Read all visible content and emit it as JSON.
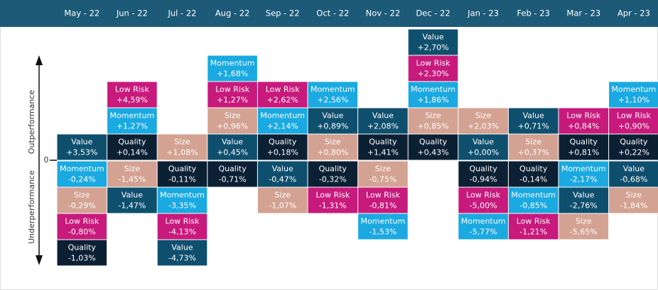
{
  "chart_data": {
    "type": "ranked-grid",
    "axis_labels": {
      "upper": "Outperformance",
      "lower": "Underperformance",
      "zero": "0"
    },
    "colors": {
      "Value": "#0f4f6e",
      "Quality": "#0c2034",
      "Momentum": "#1aa9e1",
      "Low Risk": "#c8197c",
      "Size": "#d3a292"
    },
    "columns": [
      {
        "month": "May - 22",
        "cells": [
          {
            "factor": "Value",
            "value": 3.53,
            "label": "+3,53%"
          },
          {
            "factor": "Momentum",
            "value": -0.24,
            "label": "-0,24%"
          },
          {
            "factor": "Size",
            "value": -0.29,
            "label": "-0,29%"
          },
          {
            "factor": "Low Risk",
            "value": -0.8,
            "label": "-0,80%"
          },
          {
            "factor": "Quality",
            "value": -1.03,
            "label": "-1,03%"
          }
        ]
      },
      {
        "month": "Jun - 22",
        "cells": [
          {
            "factor": "Low Risk",
            "value": 4.59,
            "label": "+4,59%"
          },
          {
            "factor": "Momentum",
            "value": 1.27,
            "label": "+1,27%"
          },
          {
            "factor": "Quality",
            "value": 0.14,
            "label": "+0,14%"
          },
          {
            "factor": "Size",
            "value": -1.45,
            "label": "-1,45%"
          },
          {
            "factor": "Value",
            "value": -1.47,
            "label": "-1,47%"
          }
        ]
      },
      {
        "month": "Jul - 22",
        "cells": [
          {
            "factor": "Size",
            "value": 1.08,
            "label": "+1,08%"
          },
          {
            "factor": "Quality",
            "value": -0.11,
            "label": "-0,11%"
          },
          {
            "factor": "Momentum",
            "value": -3.35,
            "label": "-3,35%"
          },
          {
            "factor": "Low Risk",
            "value": -4.13,
            "label": "-4,13%"
          },
          {
            "factor": "Value",
            "value": -4.73,
            "label": "-4,73%"
          }
        ]
      },
      {
        "month": "Aug - 22",
        "cells": [
          {
            "factor": "Momentum",
            "value": 1.68,
            "label": "+1,68%"
          },
          {
            "factor": "Low Risk",
            "value": 1.27,
            "label": "+1,27%"
          },
          {
            "factor": "Size",
            "value": 0.96,
            "label": "+0,96%"
          },
          {
            "factor": "Value",
            "value": 0.45,
            "label": "+0,45%"
          },
          {
            "factor": "Quality",
            "value": -0.71,
            "label": "-0,71%"
          }
        ]
      },
      {
        "month": "Sep - 22",
        "cells": [
          {
            "factor": "Low Risk",
            "value": 2.62,
            "label": "+2,62%"
          },
          {
            "factor": "Momentum",
            "value": 2.14,
            "label": "+2,14%"
          },
          {
            "factor": "Quality",
            "value": 0.18,
            "label": "+0,18%"
          },
          {
            "factor": "Value",
            "value": -0.47,
            "label": "-0,47%"
          },
          {
            "factor": "Size",
            "value": -1.07,
            "label": "-1,07%"
          }
        ]
      },
      {
        "month": "Oct - 22",
        "cells": [
          {
            "factor": "Momentum",
            "value": 2.56,
            "label": "+2,56%"
          },
          {
            "factor": "Value",
            "value": 0.89,
            "label": "+0,89%"
          },
          {
            "factor": "Size",
            "value": 0.8,
            "label": "+0,80%"
          },
          {
            "factor": "Quality",
            "value": -0.32,
            "label": "-0,32%"
          },
          {
            "factor": "Low Risk",
            "value": -1.31,
            "label": "-1,31%"
          }
        ]
      },
      {
        "month": "Nov - 22",
        "cells": [
          {
            "factor": "Value",
            "value": 2.08,
            "label": "+2,08%"
          },
          {
            "factor": "Quality",
            "value": 1.41,
            "label": "+1,41%"
          },
          {
            "factor": "Size",
            "value": -0.75,
            "label": "-0,75%"
          },
          {
            "factor": "Low Risk",
            "value": -0.81,
            "label": "-0,81%"
          },
          {
            "factor": "Momentum",
            "value": -1.53,
            "label": "-1,53%"
          }
        ]
      },
      {
        "month": "Dec - 22",
        "cells": [
          {
            "factor": "Value",
            "value": 2.7,
            "label": "+2,70%"
          },
          {
            "factor": "Low Risk",
            "value": 2.3,
            "label": "+2,30%"
          },
          {
            "factor": "Momentum",
            "value": 1.86,
            "label": "+1,86%"
          },
          {
            "factor": "Size",
            "value": 0.85,
            "label": "+0,85%"
          },
          {
            "factor": "Quality",
            "value": 0.43,
            "label": "+0,43%"
          }
        ]
      },
      {
        "month": "Jan - 23",
        "cells": [
          {
            "factor": "Size",
            "value": 2.03,
            "label": "+2,03%"
          },
          {
            "factor": "Value",
            "value": 0.0,
            "label": "+0,00%"
          },
          {
            "factor": "Quality",
            "value": -0.94,
            "label": "-0,94%"
          },
          {
            "factor": "Low Risk",
            "value": -5.0,
            "label": "-5,00%"
          },
          {
            "factor": "Momentum",
            "value": -5.77,
            "label": "-5,77%"
          }
        ]
      },
      {
        "month": "Feb - 23",
        "cells": [
          {
            "factor": "Value",
            "value": 0.71,
            "label": "+0,71%"
          },
          {
            "factor": "Size",
            "value": 0.37,
            "label": "+0,37%"
          },
          {
            "factor": "Quality",
            "value": -0.14,
            "label": "-0,14%"
          },
          {
            "factor": "Momentum",
            "value": -0.85,
            "label": "-0,85%"
          },
          {
            "factor": "Low Risk",
            "value": -1.21,
            "label": "-1,21%"
          }
        ]
      },
      {
        "month": "Mar - 23",
        "cells": [
          {
            "factor": "Low Risk",
            "value": 0.84,
            "label": "+0,84%"
          },
          {
            "factor": "Quality",
            "value": 0.81,
            "label": "+0,81%"
          },
          {
            "factor": "Momentum",
            "value": -2.17,
            "label": "-2,17%"
          },
          {
            "factor": "Value",
            "value": -2.76,
            "label": "-2,76%"
          },
          {
            "factor": "Size",
            "value": -5.65,
            "label": "-5,65%"
          }
        ]
      },
      {
        "month": "Apr - 23",
        "cells": [
          {
            "factor": "Momentum",
            "value": 1.1,
            "label": "+1,10%"
          },
          {
            "factor": "Low Risk",
            "value": 0.9,
            "label": "+0,90%"
          },
          {
            "factor": "Quality",
            "value": 0.22,
            "label": "+0,22%"
          },
          {
            "factor": "Value",
            "value": -0.68,
            "label": "-0,68%"
          },
          {
            "factor": "Size",
            "value": -1.84,
            "label": "-1,84%"
          }
        ]
      }
    ]
  }
}
